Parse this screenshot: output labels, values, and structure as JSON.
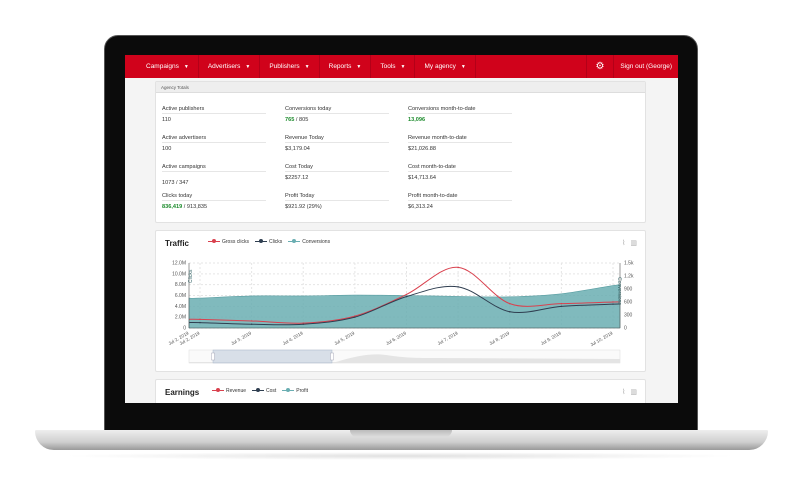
{
  "nav": {
    "items": [
      "Campaigns",
      "Advertisers",
      "Publishers",
      "Reports",
      "Tools",
      "My agency"
    ],
    "settings_icon": "gear-icon",
    "signout": "Sign out (George)",
    "color": "#d0021b"
  },
  "totals": {
    "title": "Agency Totals",
    "stats": [
      {
        "label": "Active publishers",
        "value": "110"
      },
      {
        "label": "Conversions today",
        "highlight": "765",
        "value": " / 805"
      },
      {
        "label": "Conversions month-to-date",
        "highlight": "13,096",
        "value": ""
      },
      {
        "label": "Active advertisers",
        "value": "100"
      },
      {
        "label": "Revenue Today",
        "value": "$3,179.04"
      },
      {
        "label": "Revenue month-to-date",
        "value": "$21,026.88"
      },
      {
        "label": "Active campaigns",
        "value": "1073 / 347"
      },
      {
        "label": "Cost Today",
        "value": "$2257.12"
      },
      {
        "label": "Cost month-to-date",
        "value": "$14,713.64"
      },
      {
        "label": "Clicks today",
        "highlight": "836,419",
        "value": " / 913,835"
      },
      {
        "label": "Profit Today",
        "value": "$921.92 (29%)"
      },
      {
        "label": "Profit month-to-date",
        "value": "$6,313.24"
      }
    ]
  },
  "traffic": {
    "title": "Traffic",
    "legend": [
      "Gross clicks",
      "Clicks",
      "Conversions"
    ]
  },
  "earnings": {
    "title": "Earnings",
    "legend": [
      "Revenue",
      "Cost",
      "Profit"
    ]
  },
  "chart_data": {
    "type": "line",
    "title": "Traffic",
    "x": [
      "Jul 2, 2019",
      "Jul 3, 2019",
      "Jul 4, 2019",
      "Jul 5, 2019",
      "Jul 6, 2019",
      "Jul 7, 2019",
      "Jul 8, 2019",
      "Jul 9, 2019",
      "Jul 10, 2019"
    ],
    "ylabel": "Clicks",
    "y2label": "Conversions",
    "ylim": [
      0,
      12000000
    ],
    "y2lim": [
      0,
      1500
    ],
    "yticks": [
      "0",
      "2.0M",
      "4.0M",
      "6.0M",
      "8.0M",
      "10.0M",
      "12.0M"
    ],
    "y2ticks": [
      "0",
      "300",
      "600",
      "900",
      "1.2k",
      "1.5k"
    ],
    "series": [
      {
        "name": "Gross clicks",
        "color": "#d9414e",
        "axis": "left",
        "values": [
          1600000,
          1300000,
          900000,
          2200000,
          6200000,
          11200000,
          4500000,
          4500000,
          4800000
        ]
      },
      {
        "name": "Clicks",
        "color": "#2f3e50",
        "axis": "left",
        "values": [
          1000000,
          700000,
          700000,
          2000000,
          5800000,
          7600000,
          3000000,
          4000000,
          4400000
        ]
      },
      {
        "name": "Conversions",
        "color": "#6aaeb2",
        "type": "area",
        "axis": "right",
        "values": [
          690,
          740,
          740,
          760,
          750,
          730,
          720,
          790,
          980
        ]
      }
    ],
    "grid": true
  }
}
